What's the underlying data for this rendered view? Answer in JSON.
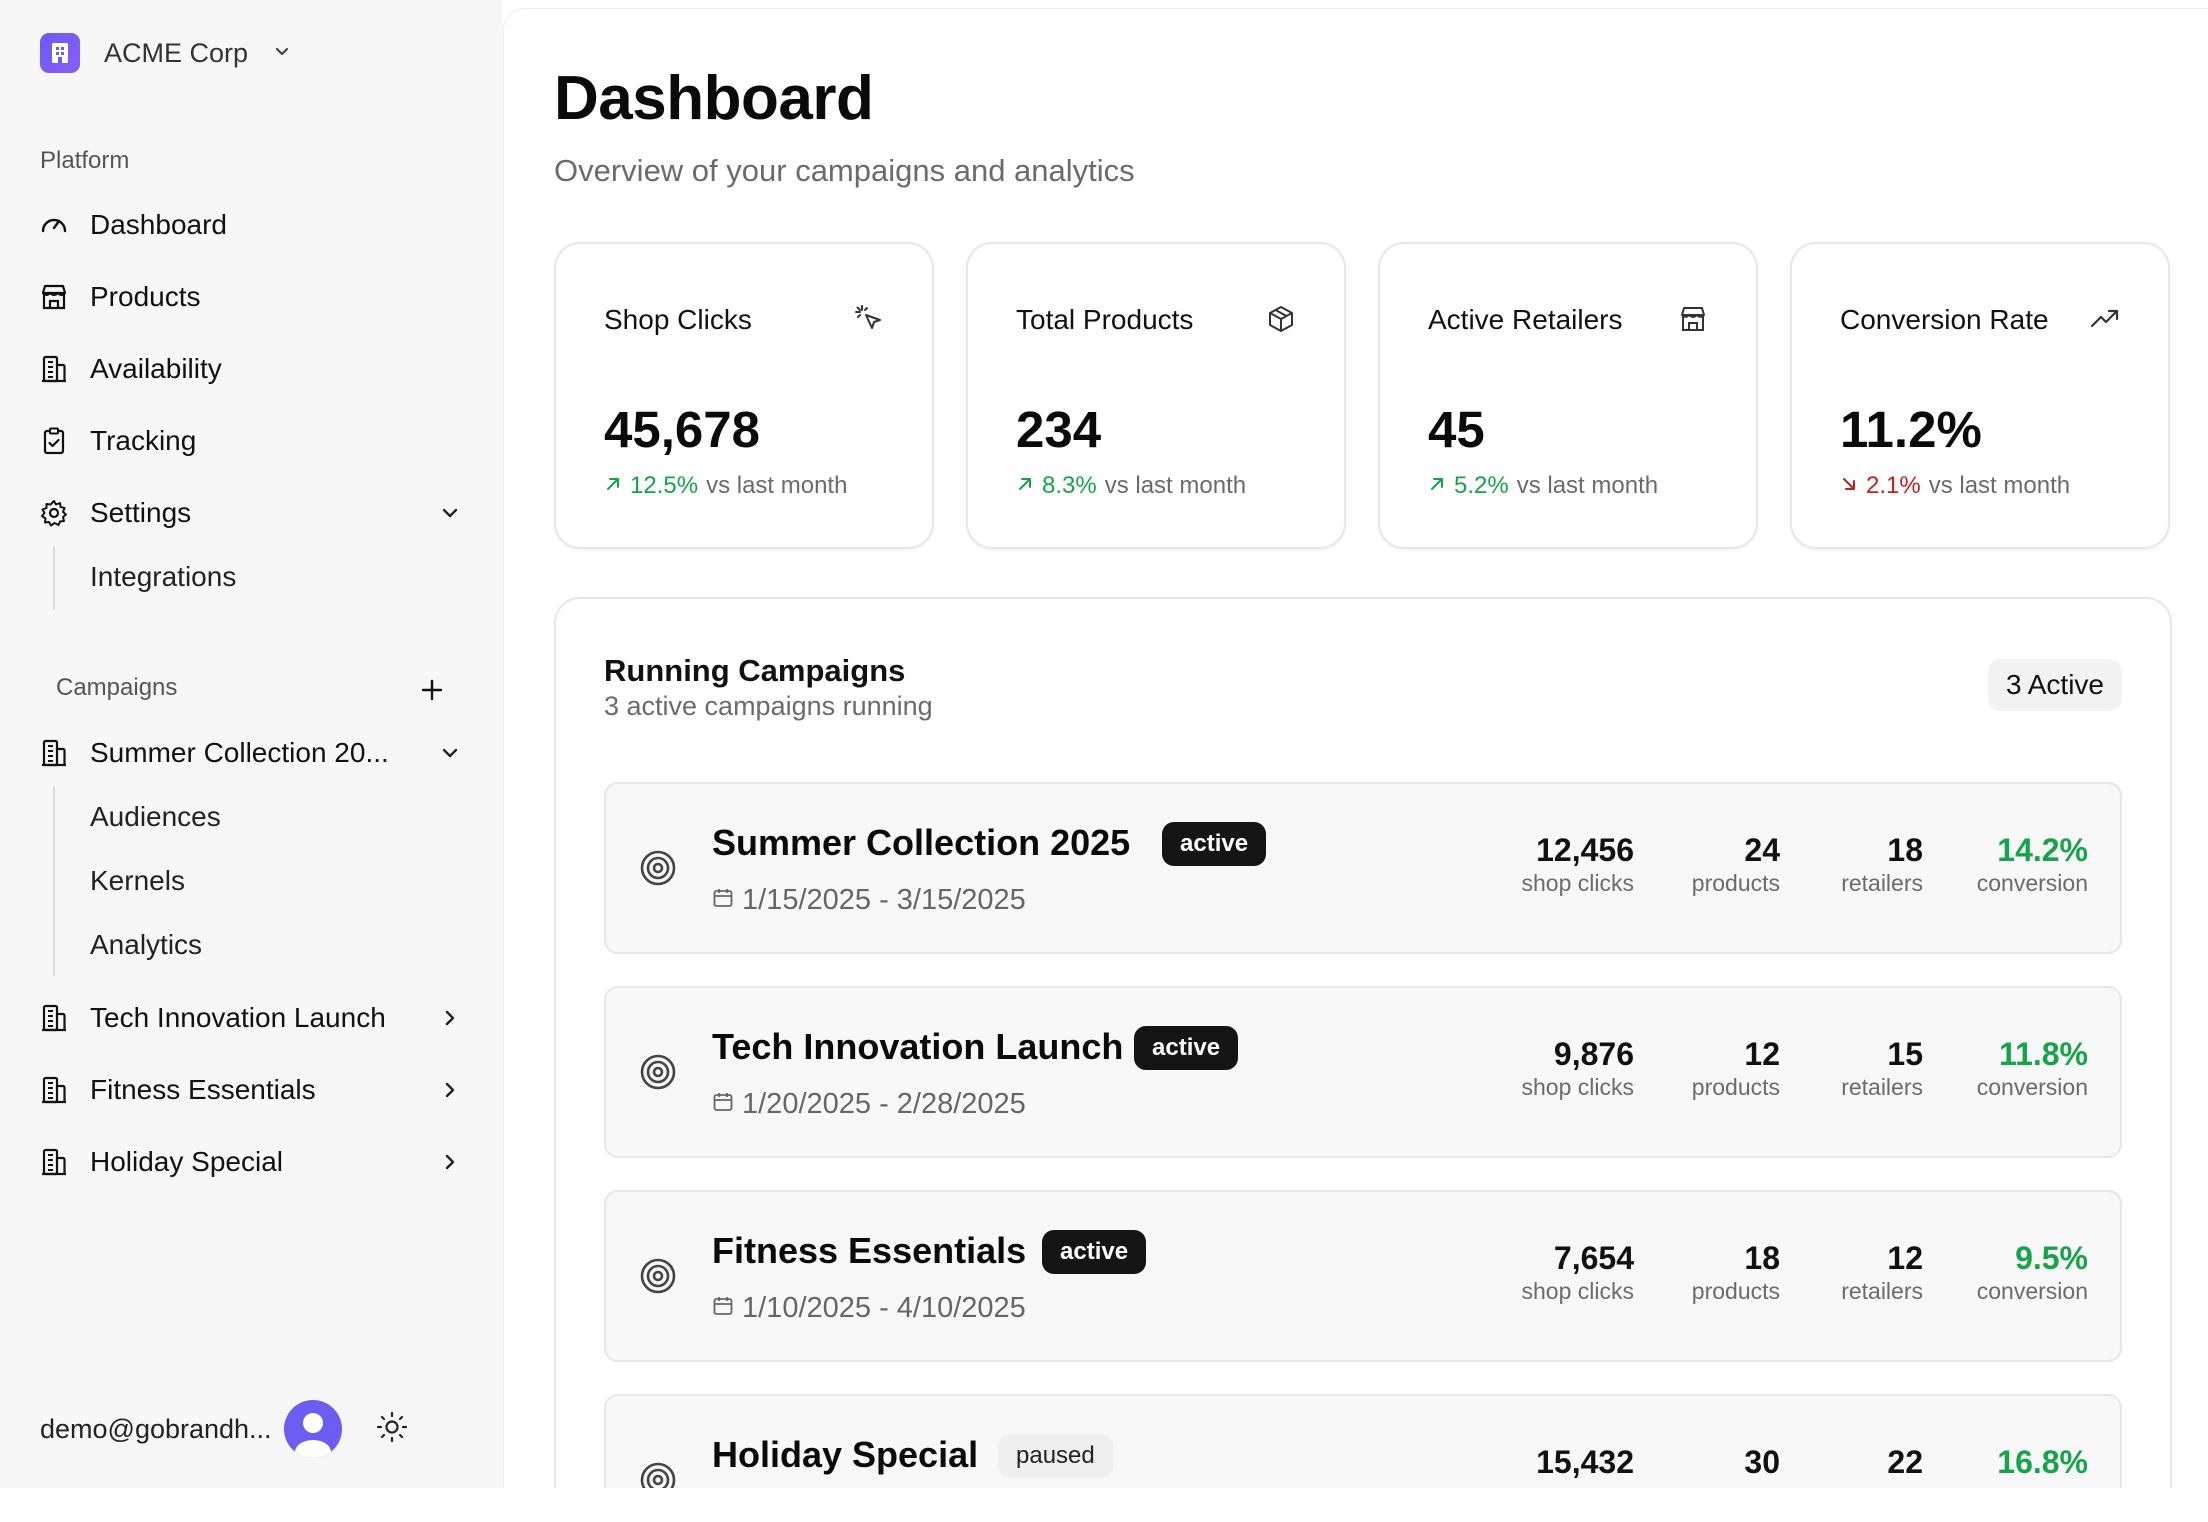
{
  "sidebar": {
    "org_name": "ACME Corp",
    "platform_label": "Platform",
    "nav": [
      {
        "label": "Dashboard",
        "icon": "gauge-icon"
      },
      {
        "label": "Products",
        "icon": "store-icon"
      },
      {
        "label": "Availability",
        "icon": "building-icon"
      },
      {
        "label": "Tracking",
        "icon": "clipboard-check-icon"
      },
      {
        "label": "Settings",
        "icon": "gear-icon"
      }
    ],
    "settings_sub": [
      "Integrations"
    ],
    "campaigns_label": "Campaigns",
    "campaigns": [
      {
        "label": "Summer Collection 20...",
        "expanded": true
      },
      {
        "label": "Tech Innovation Launch",
        "expanded": false
      },
      {
        "label": "Fitness Essentials",
        "expanded": false
      },
      {
        "label": "Holiday Special",
        "expanded": false
      }
    ],
    "campaign_sub": [
      "Audiences",
      "Kernels",
      "Analytics"
    ],
    "user_email": "demo@gobrandh..."
  },
  "header": {
    "title": "Dashboard",
    "subtitle": "Overview of your campaigns and analytics"
  },
  "stats": [
    {
      "title": "Shop Clicks",
      "value": "45,678",
      "change": "12.5%",
      "direction": "up",
      "suffix": "vs last month",
      "icon": "cursor-click-icon"
    },
    {
      "title": "Total Products",
      "value": "234",
      "change": "8.3%",
      "direction": "up",
      "suffix": "vs last month",
      "icon": "package-icon"
    },
    {
      "title": "Active Retailers",
      "value": "45",
      "change": "5.2%",
      "direction": "up",
      "suffix": "vs last month",
      "icon": "store-icon"
    },
    {
      "title": "Conversion Rate",
      "value": "11.2%",
      "change": "2.1%",
      "direction": "down",
      "suffix": "vs last month",
      "icon": "trending-up-icon"
    }
  ],
  "campaigns_panel": {
    "title": "Running Campaigns",
    "subtitle": "3 active campaigns running",
    "badge": "3 Active",
    "rows": [
      {
        "name": "Summer Collection 2025",
        "status": "active",
        "dates": "1/15/2025 - 3/15/2025",
        "clicks": "12,456",
        "clicks_label": "shop clicks",
        "products": "24",
        "products_label": "products",
        "retailers": "18",
        "retailers_label": "retailers",
        "conversion": "14.2%",
        "conversion_label": "conversion"
      },
      {
        "name": "Tech Innovation Launch",
        "status": "active",
        "dates": "1/20/2025 - 2/28/2025",
        "clicks": "9,876",
        "clicks_label": "shop clicks",
        "products": "12",
        "products_label": "products",
        "retailers": "15",
        "retailers_label": "retailers",
        "conversion": "11.8%",
        "conversion_label": "conversion"
      },
      {
        "name": "Fitness Essentials",
        "status": "active",
        "dates": "1/10/2025 - 4/10/2025",
        "clicks": "7,654",
        "clicks_label": "shop clicks",
        "products": "18",
        "products_label": "products",
        "retailers": "12",
        "retailers_label": "retailers",
        "conversion": "9.5%",
        "conversion_label": "conversion"
      },
      {
        "name": "Holiday Special",
        "status": "paused",
        "dates": "",
        "clicks": "15,432",
        "clicks_label": "",
        "products": "30",
        "products_label": "",
        "retailers": "22",
        "retailers_label": "",
        "conversion": "16.8%",
        "conversion_label": ""
      }
    ]
  },
  "colors": {
    "accent": "#6c5cf0",
    "positive": "#16a34a",
    "negative": "#c81e1e"
  }
}
